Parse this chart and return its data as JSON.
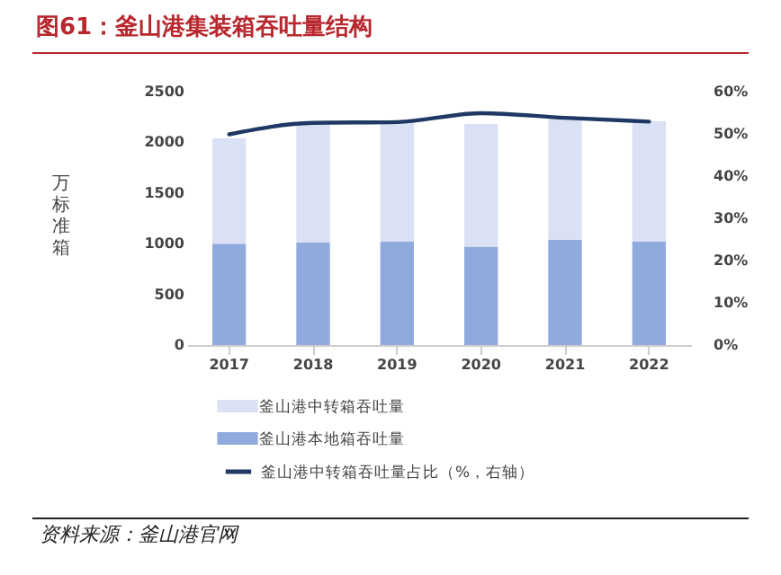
{
  "chart_data": {
    "type": "bar",
    "title": "图61：釜山港集装箱吞吐量结构",
    "ylabel": "万标准箱",
    "categories": [
      "2017",
      "2018",
      "2019",
      "2020",
      "2021",
      "2022"
    ],
    "stacked": true,
    "series": [
      {
        "name": "釜山港本地箱吞吐量",
        "color": "#8faadc",
        "values": [
          1000,
          1010,
          1020,
          970,
          1040,
          1020
        ]
      },
      {
        "name": "釜山港中转箱吞吐量",
        "color": "#dae1f4",
        "values": [
          1040,
          1170,
          1180,
          1210,
          1190,
          1190
        ]
      },
      {
        "name": "釜山港中转箱吞吐量占比（%，右轴）",
        "type": "line",
        "axis": "y2",
        "color": "#1f3864",
        "values": [
          49.9,
          52.6,
          52.8,
          54.9,
          53.8,
          52.9
        ]
      }
    ],
    "ylim": [
      0,
      2500
    ],
    "yticks": [
      0,
      500,
      1000,
      1500,
      2000,
      2500
    ],
    "y2lim": [
      0,
      60
    ],
    "y2ticks": [
      {
        "value": 0,
        "label": "0%"
      },
      {
        "value": 10,
        "label": "10%"
      },
      {
        "value": 20,
        "label": "20%"
      },
      {
        "value": 30,
        "label": "30%"
      },
      {
        "value": 40,
        "label": "40%"
      },
      {
        "value": 50,
        "label": "50%"
      },
      {
        "value": 60,
        "label": "60%"
      }
    ],
    "grid": false,
    "legend": "bottom",
    "marker": "none",
    "line_style": "solid",
    "annotations": [
      "资料来源：釜山港官网"
    ]
  }
}
